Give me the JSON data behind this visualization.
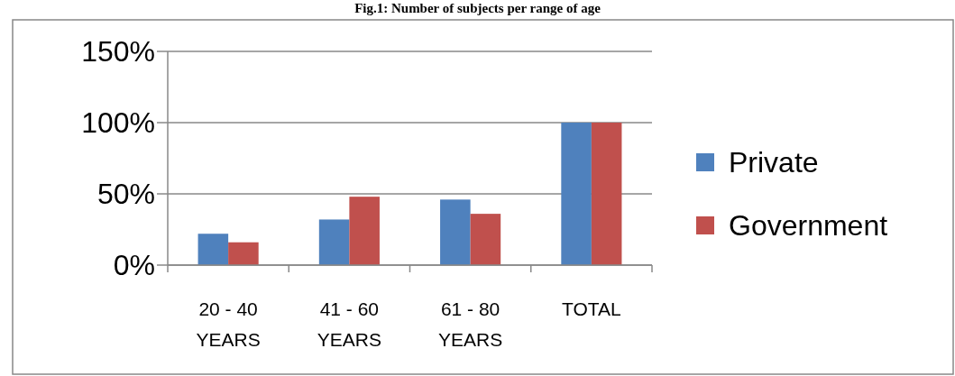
{
  "chart_data": {
    "type": "bar",
    "title": "Fig.1: Number of subjects per range of age",
    "categories": [
      "20 - 40 YEARS",
      "41 - 60 YEARS",
      "61 - 80 YEARS",
      "TOTAL"
    ],
    "series": [
      {
        "name": "Private",
        "color": "#4f81bd",
        "values": [
          22,
          32,
          46,
          100
        ]
      },
      {
        "name": "Government",
        "color": "#c0504d",
        "values": [
          16,
          48,
          36,
          100
        ]
      }
    ],
    "ylim": [
      0,
      150
    ],
    "yticks": [
      {
        "value": 0,
        "label": "0%"
      },
      {
        "value": 50,
        "label": "50%"
      },
      {
        "value": 100,
        "label": "100%"
      },
      {
        "value": 150,
        "label": "150%"
      }
    ],
    "grid": "y",
    "legend": "right"
  }
}
